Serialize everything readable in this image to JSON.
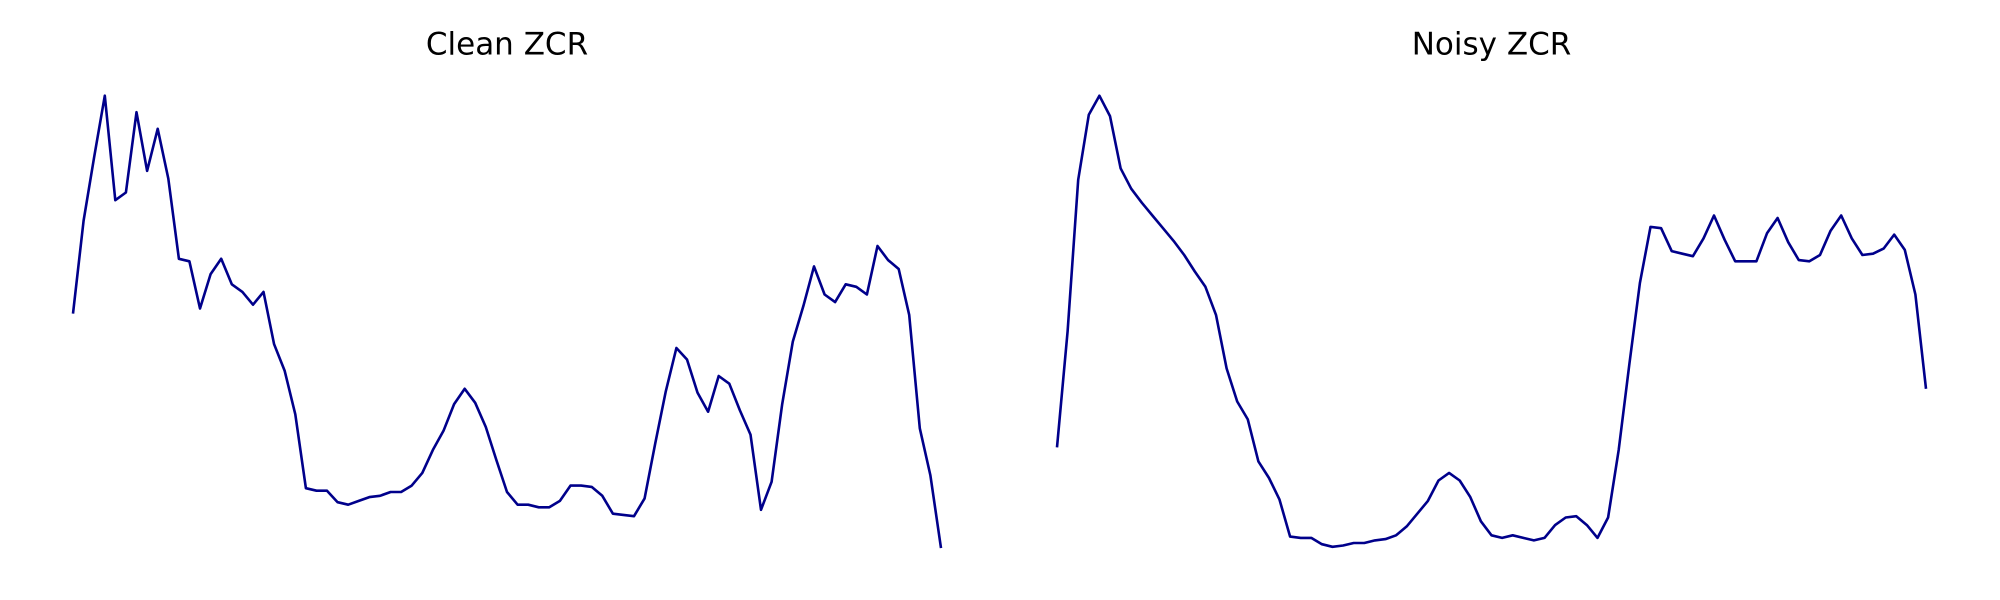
{
  "chart_data": [
    {
      "type": "line",
      "title": "Clean ZCR",
      "color": "#00008b",
      "ylim": [
        0,
        390
      ],
      "values": [
        202,
        275,
        325,
        373,
        291,
        297,
        360,
        314,
        347,
        308,
        245,
        243,
        206,
        233,
        245,
        225,
        219,
        209,
        219,
        178,
        157,
        123,
        65,
        63,
        63,
        54,
        52,
        55,
        58,
        59,
        62,
        62,
        67,
        77,
        95,
        110,
        131,
        143,
        132,
        113,
        87,
        62,
        52,
        52,
        50,
        50,
        55,
        67,
        67,
        66,
        59,
        45,
        44,
        43,
        57,
        100,
        141,
        175,
        166,
        140,
        125,
        153,
        147,
        126,
        107,
        48,
        70,
        131,
        180,
        208,
        239,
        217,
        211,
        225,
        223,
        217,
        255,
        244,
        237,
        201,
        112,
        75,
        18
      ]
    },
    {
      "type": "line",
      "title": "Noisy ZCR",
      "color": "#00008b",
      "ylim": [
        0,
        390
      ],
      "values": [
        97,
        188,
        307,
        358,
        373,
        357,
        316,
        300,
        289,
        279,
        269,
        259,
        248,
        235,
        223,
        201,
        159,
        133,
        119,
        86,
        73,
        56,
        27,
        26,
        26,
        21,
        19,
        20,
        22,
        22,
        24,
        25,
        28,
        35,
        45,
        55,
        71,
        77,
        71,
        58,
        39,
        28,
        26,
        28,
        26,
        24,
        26,
        36,
        42,
        43,
        36,
        26,
        42,
        95,
        162,
        226,
        270,
        269,
        251,
        249,
        247,
        261,
        279,
        260,
        243,
        243,
        243,
        265,
        277,
        258,
        244,
        243,
        248,
        267,
        279,
        261,
        248,
        249,
        253,
        264,
        252,
        217,
        143
      ]
    }
  ]
}
